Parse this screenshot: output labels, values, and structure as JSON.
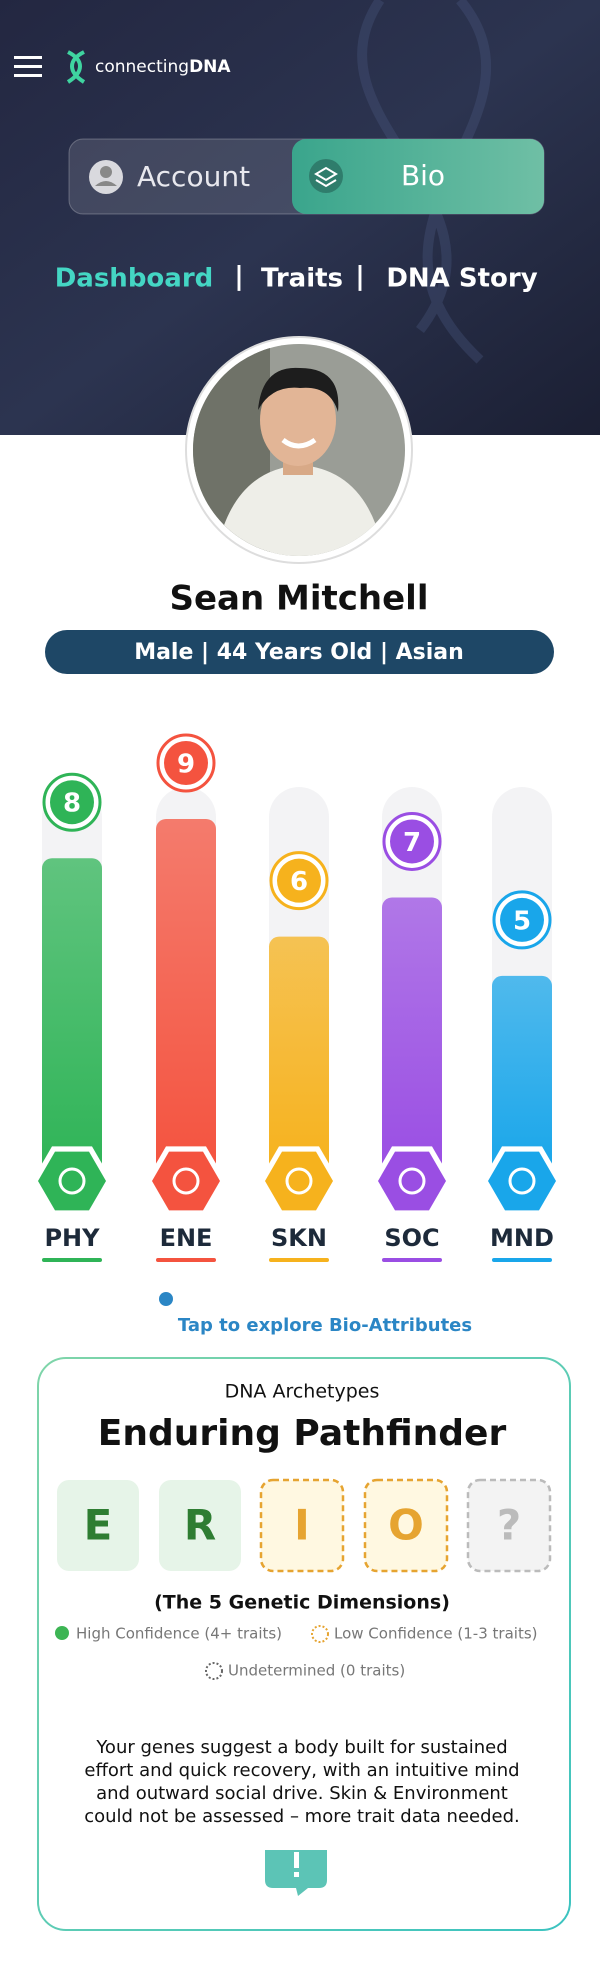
{
  "header": {
    "brand_prefix": "connecting",
    "brand_suffix": "DNA"
  },
  "toggle": {
    "left": "Account",
    "right": "Bio"
  },
  "nav": {
    "items": [
      "Dashboard",
      "Traits",
      "DNA Story"
    ],
    "separator": "|"
  },
  "profile": {
    "name": "Sean Mitchell",
    "details": "Male | 44 Years Old | Asian"
  },
  "chart_data": {
    "type": "bar",
    "categories": [
      "PHY",
      "ENE",
      "SKN",
      "SOC",
      "MND"
    ],
    "values": [
      8,
      9,
      6,
      7,
      5
    ],
    "colors": [
      "#2fb457",
      "#f4533f",
      "#f6b21d",
      "#9a4ee3",
      "#19a6ea"
    ]
  },
  "hint": "Tap to explore Bio-Attributes",
  "archetype": {
    "label": "DNA Archetypes",
    "name": "Enduring Pathfinder",
    "letters": [
      "E",
      "R",
      "I",
      "O",
      "?"
    ],
    "dimensions": "(The 5 Genetic Dimensions)",
    "legend": [
      "High Confidence (4+ traits)",
      "Low Confidence (1-3 traits)",
      "Undetermined (0 traits)"
    ],
    "description": [
      "Your genes suggest a body built for sustained",
      "effort and quick recovery, with an intuitive mind",
      "and outward social drive. Skin & Environment",
      "could not be assessed – more trait data needed."
    ]
  }
}
